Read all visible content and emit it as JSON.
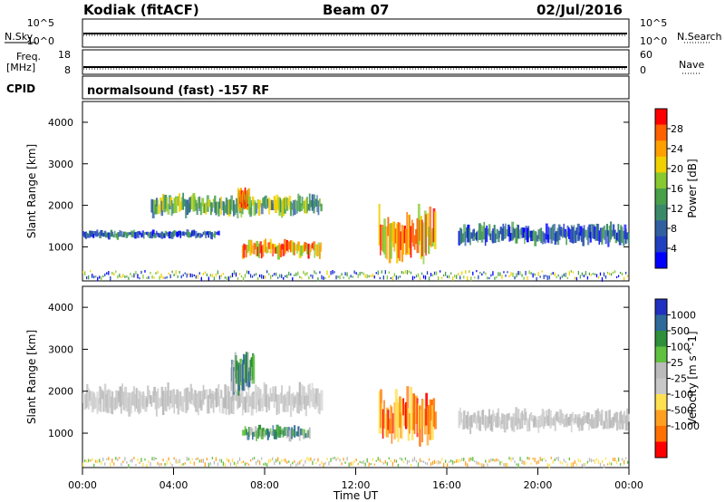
{
  "header": {
    "station": "Kodiak (fitACF)",
    "beam": "Beam 07",
    "date": "02/Jul/2016"
  },
  "strip_labels": {
    "nsky": "N.Sky",
    "nsearch": "N.Search",
    "freq_line1": "Freq.",
    "freq_line2": "[MHz]",
    "nave": "Nave",
    "cpid": "CPID",
    "cpid_value": "normalsound (fast) -157 RF"
  },
  "strips": {
    "noise": {
      "left_ticks": [
        "10^5",
        "10^0"
      ],
      "right_ticks": [
        "10^5",
        "10^0"
      ]
    },
    "freq": {
      "left_ticks": [
        "18",
        "8"
      ],
      "right_ticks": [
        "60",
        "0"
      ]
    }
  },
  "colors": {
    "power": [
      "#0000ff",
      "#2040c0",
      "#3060a0",
      "#3a8a6a",
      "#48a048",
      "#88c830",
      "#f0d000",
      "#ffa000",
      "#ff6000",
      "#ff0000"
    ],
    "velocity": [
      "#2030c0",
      "#2e6a9a",
      "#2f8f3a",
      "#60c040",
      "#bbbbbb",
      "#c8c8c8",
      "#ffe050",
      "#ffa020",
      "#ff7000",
      "#ff0000"
    ],
    "ground_scatter": "#c0c0c0"
  },
  "chart_data": [
    {
      "type": "heatmap",
      "title": "",
      "xlabel": "",
      "ylabel": "Slant Range [km]",
      "xlim": [
        0,
        24
      ],
      "ylim": [
        180,
        4500
      ],
      "y_ticks": [
        1000,
        2000,
        3000,
        4000
      ],
      "colorbar": {
        "label": "Power [dB]",
        "range": [
          0,
          32
        ],
        "ticks": [
          4,
          8,
          12,
          16,
          20,
          24,
          28
        ]
      },
      "approx_regions": [
        {
          "time_start": 0,
          "time_end": 6,
          "range_center": 1300,
          "range_width": 120,
          "level": "low"
        },
        {
          "time_start": 3,
          "time_end": 10.5,
          "range_center": 2000,
          "range_width": 300,
          "level": "medium"
        },
        {
          "time_start": 6.8,
          "time_end": 7.3,
          "range_center": 2150,
          "range_width": 300,
          "level": "high"
        },
        {
          "time_start": 7,
          "time_end": 10.5,
          "range_center": 950,
          "range_width": 250,
          "level": "high"
        },
        {
          "time_start": 13,
          "time_end": 15.5,
          "range_center": 1300,
          "range_width": 700,
          "level": "high"
        },
        {
          "time_start": 16.5,
          "time_end": 24,
          "range_center": 1300,
          "range_width": 300,
          "level": "low"
        }
      ]
    },
    {
      "type": "heatmap",
      "title": "",
      "xlabel": "Time UT",
      "ylabel": "Slant Range [km]",
      "xlim": [
        0,
        24
      ],
      "ylim": [
        180,
        4500
      ],
      "x_ticks": [
        "00:00",
        "04:00",
        "08:00",
        "12:00",
        "16:00",
        "20:00",
        "00:00"
      ],
      "y_ticks": [
        1000,
        2000,
        3000,
        4000
      ],
      "colorbar": {
        "label": "Velocity [m s^-1]",
        "ticks": [
          "1000",
          "500",
          "100",
          "25",
          "-25",
          "-100",
          "-500",
          "-1000"
        ]
      },
      "approx_regions": [
        {
          "time_start": 0,
          "time_end": 10.5,
          "range_center": 1800,
          "range_width": 400,
          "class": "ground scatter"
        },
        {
          "time_start": 6.5,
          "time_end": 7.5,
          "range_center": 2400,
          "range_width": 600,
          "class": "positive velocity"
        },
        {
          "time_start": 7,
          "time_end": 10,
          "range_center": 1000,
          "range_width": 200,
          "class": "positive velocity"
        },
        {
          "time_start": 13,
          "time_end": 15.5,
          "range_center": 1400,
          "range_width": 700,
          "class": "negative velocity"
        },
        {
          "time_start": 16.5,
          "time_end": 24,
          "range_center": 1300,
          "range_width": 300,
          "class": "ground scatter"
        }
      ]
    }
  ]
}
